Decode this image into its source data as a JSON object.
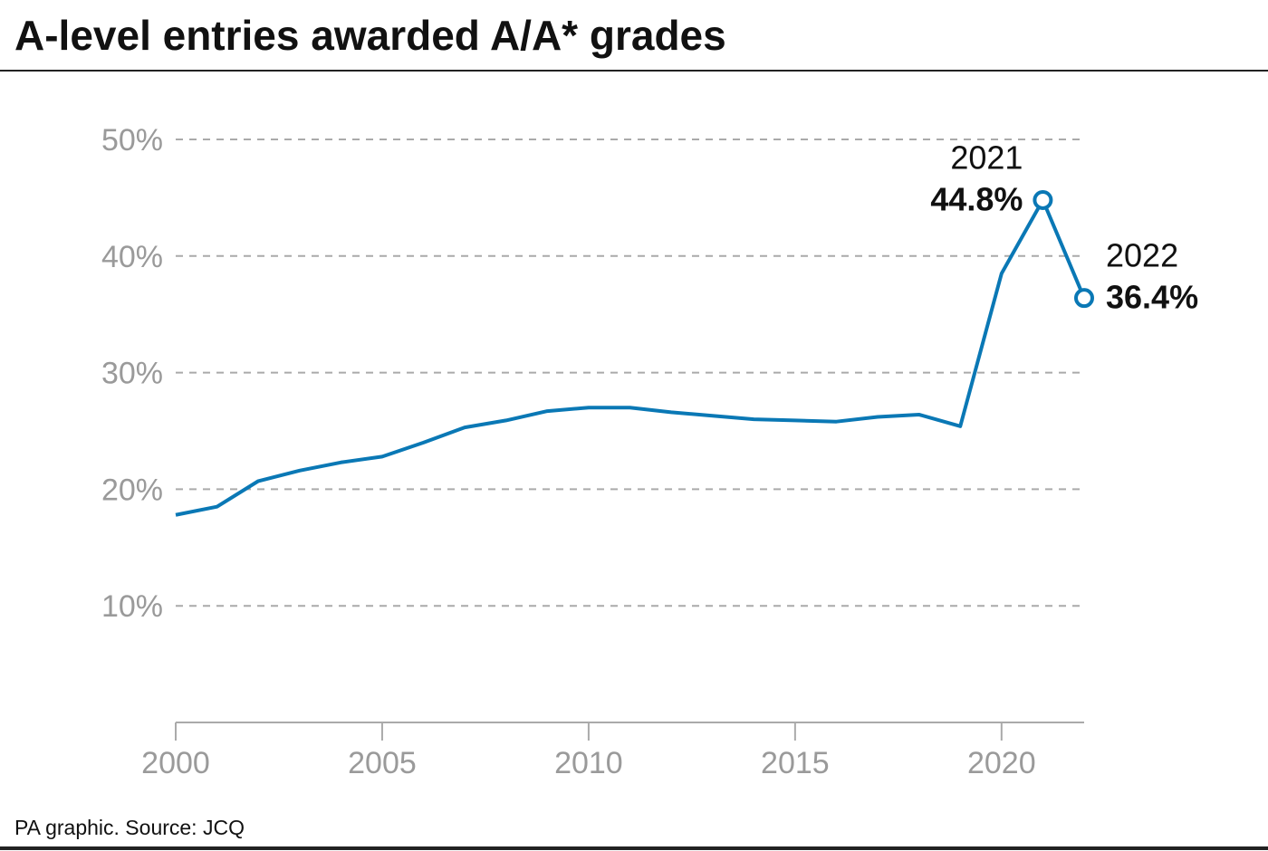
{
  "chart_data": {
    "type": "line",
    "title": "A-level entries awarded A/A* grades",
    "source": "PA graphic. Source: JCQ",
    "x": [
      2000,
      2001,
      2002,
      2003,
      2004,
      2005,
      2006,
      2007,
      2008,
      2009,
      2010,
      2011,
      2012,
      2013,
      2014,
      2015,
      2016,
      2017,
      2018,
      2019,
      2020,
      2021,
      2022
    ],
    "xlim": [
      2000,
      2022
    ],
    "xticks": [
      2000,
      2005,
      2010,
      2015,
      2020
    ],
    "ylim": [
      0,
      50
    ],
    "yticks": [
      {
        "value": 10,
        "label": "10%"
      },
      {
        "value": 20,
        "label": "20%"
      },
      {
        "value": 30,
        "label": "30%"
      },
      {
        "value": 40,
        "label": "40%"
      },
      {
        "value": 50,
        "label": "50%"
      }
    ],
    "grid": true,
    "series": [
      {
        "color": "#0a78b5",
        "values": [
          17.8,
          18.5,
          20.7,
          21.6,
          22.3,
          22.8,
          24.0,
          25.3,
          25.9,
          26.7,
          27.0,
          27.0,
          26.6,
          26.3,
          26.0,
          25.9,
          25.8,
          26.2,
          26.4,
          25.4,
          38.5,
          44.8,
          36.4
        ],
        "value_labels": [
          null,
          null,
          null,
          null,
          null,
          null,
          null,
          null,
          null,
          null,
          null,
          null,
          null,
          null,
          null,
          null,
          null,
          null,
          null,
          null,
          null,
          "44.8%",
          "36.4%"
        ]
      }
    ]
  }
}
